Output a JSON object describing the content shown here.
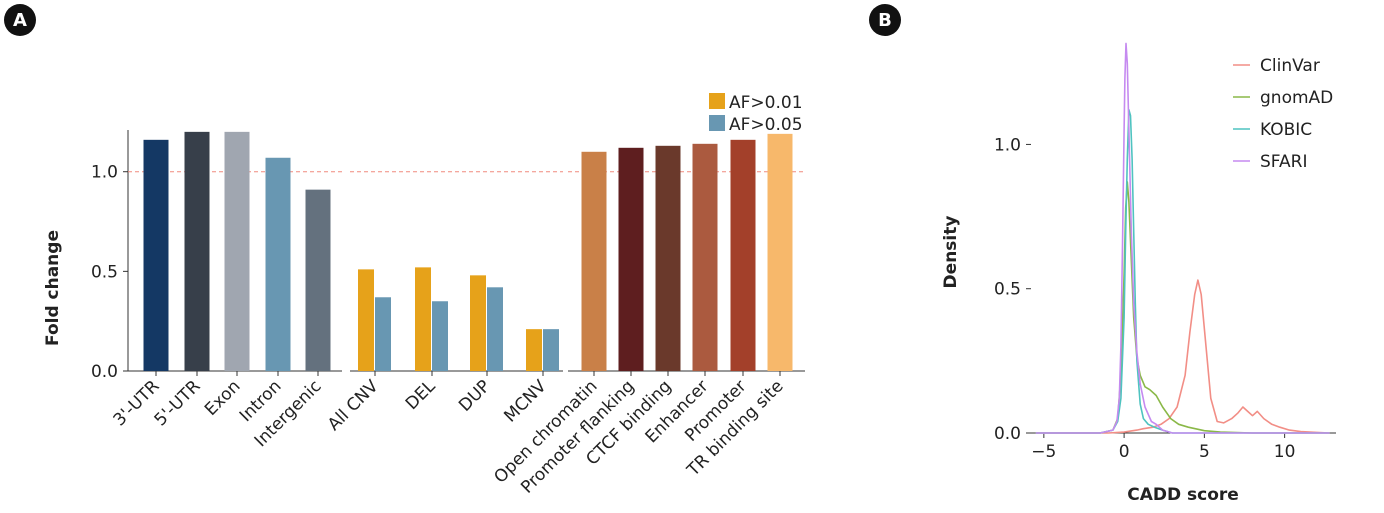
{
  "panels": [
    {
      "label": "A"
    },
    {
      "label": "B"
    }
  ],
  "chart_data": [
    {
      "type": "bar",
      "panel": "A",
      "ylabel": "Fold change",
      "ylim": [
        0,
        1.4
      ],
      "yticks": [
        0.0,
        0.5,
        1.0
      ],
      "ytick_labels": [
        "0.0",
        "0.5",
        "1.0"
      ],
      "reference_line": {
        "y": 1.0,
        "color": "#f08a7e",
        "style": "dashed"
      },
      "legend": {
        "position": "top-right",
        "items": [
          {
            "name": "AF>0.01",
            "color": "#e6a21a"
          },
          {
            "name": "AF>0.05",
            "color": "#6897b2"
          }
        ]
      },
      "groups": [
        {
          "bars": [
            {
              "category": "3'-UTR",
              "value": 1.16,
              "color": "#143864"
            },
            {
              "category": "5'-UTR",
              "value": 1.2,
              "color": "#373f4a"
            },
            {
              "category": "Exon",
              "value": 1.2,
              "color": "#a0a6b0"
            },
            {
              "category": "Intron",
              "value": 1.07,
              "color": "#6897b2"
            },
            {
              "category": "Intergenic",
              "value": 0.91,
              "color": "#64717e"
            }
          ]
        },
        {
          "categories": [
            "All CNV",
            "DEL",
            "DUP",
            "MCNV"
          ],
          "series": [
            {
              "name": "AF>0.01",
              "color": "#e6a21a",
              "values": [
                0.51,
                0.52,
                0.48,
                0.21
              ]
            },
            {
              "name": "AF>0.05",
              "color": "#6897b2",
              "values": [
                0.37,
                0.35,
                0.42,
                0.21
              ]
            }
          ]
        },
        {
          "bars": [
            {
              "category": "Open chromatin",
              "value": 1.1,
              "color": "#c98048"
            },
            {
              "category": "Promoter flanking",
              "value": 1.12,
              "color": "#5e1e1f"
            },
            {
              "category": "CTCF binding",
              "value": 1.13,
              "color": "#6a392b"
            },
            {
              "category": "Enhancer",
              "value": 1.14,
              "color": "#ab5a3f"
            },
            {
              "category": "Promoter",
              "value": 1.16,
              "color": "#a3402a"
            },
            {
              "category": "TR binding site",
              "value": 1.19,
              "color": "#f7b86b"
            }
          ]
        }
      ]
    },
    {
      "type": "line",
      "subtype": "density",
      "panel": "B",
      "xlabel": "CADD score",
      "ylabel": "Density",
      "xlim": [
        -5.8,
        13.2
      ],
      "ylim": [
        0,
        1.4
      ],
      "xticks": [
        -5,
        0,
        5,
        10
      ],
      "xtick_labels": [
        "−5",
        "0",
        "5",
        "10"
      ],
      "yticks": [
        0.0,
        0.5,
        1.0
      ],
      "ytick_labels": [
        "0.0",
        "0.5",
        "1.0"
      ],
      "legend": {
        "position": "top-right"
      },
      "series": [
        {
          "name": "ClinVar",
          "color": "#f28e86",
          "x": [
            -5.5,
            -1.0,
            0.0,
            0.8,
            1.2,
            1.8,
            2.3,
            2.8,
            3.3,
            3.8,
            4.1,
            4.4,
            4.6,
            4.8,
            5.1,
            5.4,
            5.8,
            6.2,
            6.7,
            7.1,
            7.4,
            7.7,
            8.0,
            8.3,
            8.7,
            9.2,
            9.7,
            10.3,
            11.0,
            12.0,
            12.8
          ],
          "y": [
            0.0,
            0.0,
            0.003,
            0.01,
            0.015,
            0.02,
            0.03,
            0.05,
            0.09,
            0.2,
            0.35,
            0.48,
            0.53,
            0.48,
            0.3,
            0.12,
            0.04,
            0.035,
            0.05,
            0.07,
            0.09,
            0.075,
            0.06,
            0.075,
            0.05,
            0.03,
            0.02,
            0.01,
            0.005,
            0.002,
            0.0
          ]
        },
        {
          "name": "gnomAD",
          "color": "#8ab848",
          "x": [
            -5.5,
            -1.5,
            -0.7,
            -0.4,
            -0.2,
            0.0,
            0.1,
            0.2,
            0.3,
            0.45,
            0.6,
            0.8,
            1.0,
            1.3,
            1.6,
            2.0,
            2.4,
            2.9,
            3.4,
            4.0,
            5.0,
            6.0,
            8.0,
            12.8
          ],
          "y": [
            0.0,
            0.0,
            0.01,
            0.05,
            0.2,
            0.55,
            0.78,
            0.87,
            0.8,
            0.6,
            0.4,
            0.26,
            0.2,
            0.16,
            0.15,
            0.13,
            0.09,
            0.05,
            0.03,
            0.02,
            0.008,
            0.003,
            0.0,
            0.0
          ]
        },
        {
          "name": "KOBIC",
          "color": "#4fc3c0",
          "x": [
            -5.5,
            -1.5,
            -0.7,
            -0.4,
            -0.2,
            0.0,
            0.1,
            0.2,
            0.3,
            0.4,
            0.5,
            0.6,
            0.7,
            0.8,
            1.0,
            1.2,
            1.5,
            1.9,
            2.4,
            3.0,
            5.0,
            12.8
          ],
          "y": [
            0.0,
            0.0,
            0.01,
            0.04,
            0.12,
            0.4,
            0.7,
            0.95,
            1.12,
            1.1,
            0.95,
            0.7,
            0.45,
            0.25,
            0.1,
            0.05,
            0.03,
            0.02,
            0.01,
            0.0,
            0.0,
            0.0
          ]
        },
        {
          "name": "SFARI",
          "color": "#c58af0",
          "x": [
            -5.5,
            -1.5,
            -0.7,
            -0.45,
            -0.3,
            -0.2,
            -0.1,
            0.0,
            0.05,
            0.12,
            0.2,
            0.3,
            0.45,
            0.6,
            0.8,
            1.0,
            1.3,
            1.7,
            2.0,
            2.4,
            3.0,
            12.8
          ],
          "y": [
            0.0,
            0.0,
            0.01,
            0.04,
            0.12,
            0.3,
            0.65,
            1.05,
            1.23,
            1.35,
            1.28,
            1.05,
            0.7,
            0.45,
            0.28,
            0.17,
            0.09,
            0.04,
            0.03,
            0.01,
            0.0,
            0.0
          ]
        }
      ]
    }
  ]
}
